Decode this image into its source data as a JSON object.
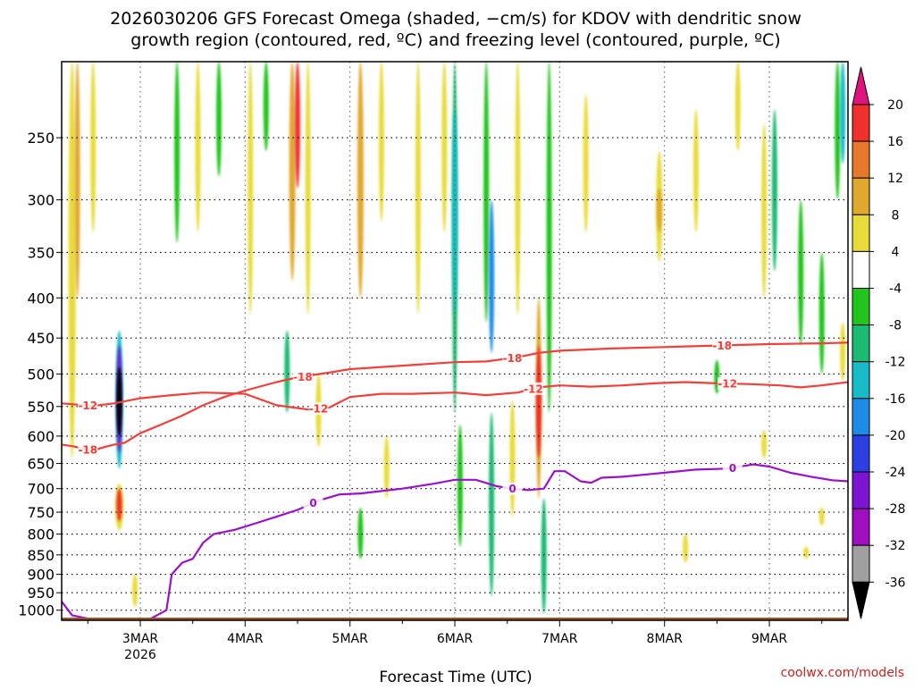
{
  "chart_data": {
    "type": "heatmap",
    "title": [
      "2026030206 GFS Forecast Omega (shaded, −cm/s) for KDOV with dendritic snow",
      "growth region (contoured, red, ºC) and freezing level (contoured, purple, ºC)"
    ],
    "xlabel": "Forecast Time (UTC)",
    "ylabel": "",
    "credit": "coolwx.com/models",
    "x_range_days": [
      2.25,
      9.75
    ],
    "x_ticks": [
      {
        "day": 3,
        "label": "3MAR",
        "sublabel": "2026"
      },
      {
        "day": 4,
        "label": "4MAR"
      },
      {
        "day": 5,
        "label": "5MAR"
      },
      {
        "day": 6,
        "label": "6MAR"
      },
      {
        "day": 7,
        "label": "7MAR"
      },
      {
        "day": 8,
        "label": "8MAR"
      },
      {
        "day": 9,
        "label": "9MAR"
      }
    ],
    "y_range_hpa": [
      1030,
      200
    ],
    "y_ticks": [
      250,
      300,
      350,
      400,
      450,
      500,
      550,
      600,
      650,
      700,
      750,
      800,
      850,
      900,
      950,
      1000
    ],
    "colorbar": {
      "labels": [
        "20",
        "16",
        "12",
        "8",
        "4",
        "-4",
        "-8",
        "-12",
        "-16",
        "-20",
        "-24",
        "-28",
        "-32",
        "-36"
      ],
      "bins": [
        {
          "range": "above 20",
          "color": "#e0147e"
        },
        {
          "range": "16 to 20",
          "color": "#f0302c"
        },
        {
          "range": "12 to 16",
          "color": "#e77a2a"
        },
        {
          "range": "8 to 12",
          "color": "#e0a92e"
        },
        {
          "range": "4 to 8",
          "color": "#e8dc3a"
        },
        {
          "range": "-4 to 4",
          "color": "#ffffff"
        },
        {
          "range": "-8 to -4",
          "color": "#22c41e"
        },
        {
          "range": "-12 to -8",
          "color": "#1cba72"
        },
        {
          "range": "-16 to -12",
          "color": "#18bcc8"
        },
        {
          "range": "-20 to -16",
          "color": "#1e8ce6"
        },
        {
          "range": "-24 to -20",
          "color": "#2c3fe0"
        },
        {
          "range": "-28 to -24",
          "color": "#7c14d2"
        },
        {
          "range": "-32 to -28",
          "color": "#a00ec0"
        },
        {
          "range": "-36 to -32",
          "color": "#a0a0a0"
        },
        {
          "range": "below -36",
          "color": "#000000"
        }
      ]
    },
    "contours": [
      {
        "name": "-18C isotherm",
        "label": "-18",
        "color": "#f0403a",
        "points": [
          [
            2.25,
            615
          ],
          [
            2.35,
            618
          ],
          [
            2.45,
            622
          ],
          [
            2.55,
            626
          ],
          [
            2.65,
            620
          ],
          [
            2.75,
            615
          ],
          [
            2.85,
            612
          ],
          [
            3.0,
            595
          ],
          [
            3.2,
            580
          ],
          [
            3.4,
            565
          ],
          [
            3.6,
            548
          ],
          [
            3.8,
            535
          ],
          [
            4.0,
            525
          ],
          [
            4.3,
            512
          ],
          [
            4.5,
            505
          ],
          [
            4.8,
            498
          ],
          [
            5.0,
            493
          ],
          [
            5.5,
            488
          ],
          [
            6.0,
            483
          ],
          [
            6.3,
            482
          ],
          [
            6.6,
            476
          ],
          [
            6.8,
            470
          ],
          [
            7.0,
            467
          ],
          [
            7.5,
            464
          ],
          [
            8.0,
            462
          ],
          [
            8.5,
            460
          ],
          [
            9.0,
            458
          ],
          [
            9.5,
            457
          ],
          [
            9.75,
            456
          ]
        ],
        "labels_at": [
          [
            2.5,
            1
          ],
          [
            4.55,
            1
          ],
          [
            6.55,
            1
          ],
          [
            8.55,
            1
          ]
        ]
      },
      {
        "name": "-12C isotherm",
        "label": "-12",
        "color": "#f0403a",
        "points": [
          [
            2.25,
            545
          ],
          [
            2.4,
            547
          ],
          [
            2.55,
            549
          ],
          [
            2.75,
            545
          ],
          [
            3.0,
            537
          ],
          [
            3.3,
            532
          ],
          [
            3.6,
            528
          ],
          [
            4.0,
            530
          ],
          [
            4.3,
            548
          ],
          [
            4.6,
            555
          ],
          [
            4.8,
            552
          ],
          [
            5.0,
            535
          ],
          [
            5.3,
            530
          ],
          [
            5.6,
            530
          ],
          [
            6.0,
            528
          ],
          [
            6.3,
            532
          ],
          [
            6.6,
            528
          ],
          [
            6.8,
            520
          ],
          [
            7.0,
            517
          ],
          [
            7.3,
            519
          ],
          [
            7.6,
            517
          ],
          [
            7.9,
            514
          ],
          [
            8.2,
            512
          ],
          [
            8.5,
            514
          ],
          [
            8.8,
            515
          ],
          [
            9.1,
            517
          ],
          [
            9.3,
            520
          ],
          [
            9.5,
            517
          ],
          [
            9.75,
            512
          ]
        ],
        "labels_at": [
          [
            2.5,
            1
          ],
          [
            4.7,
            1
          ],
          [
            6.75,
            1
          ],
          [
            8.6,
            1
          ]
        ]
      },
      {
        "name": "0C freezing level",
        "label": "0",
        "color": "#9a12c8",
        "points": [
          [
            2.25,
            975
          ],
          [
            2.35,
            1015
          ],
          [
            2.5,
            1025
          ],
          [
            2.7,
            1030
          ],
          [
            2.9,
            1030
          ],
          [
            3.1,
            1025
          ],
          [
            3.25,
            1000
          ],
          [
            3.3,
            900
          ],
          [
            3.4,
            870
          ],
          [
            3.5,
            860
          ],
          [
            3.6,
            820
          ],
          [
            3.7,
            800
          ],
          [
            3.9,
            790
          ],
          [
            4.1,
            775
          ],
          [
            4.3,
            760
          ],
          [
            4.5,
            745
          ],
          [
            4.7,
            725
          ],
          [
            4.9,
            712
          ],
          [
            5.1,
            710
          ],
          [
            5.3,
            705
          ],
          [
            5.5,
            700
          ],
          [
            5.8,
            690
          ],
          [
            6.0,
            682
          ],
          [
            6.2,
            682
          ],
          [
            6.4,
            695
          ],
          [
            6.55,
            700
          ],
          [
            6.7,
            703
          ],
          [
            6.85,
            700
          ],
          [
            6.95,
            665
          ],
          [
            7.05,
            665
          ],
          [
            7.2,
            685
          ],
          [
            7.3,
            688
          ],
          [
            7.4,
            678
          ],
          [
            7.6,
            676
          ],
          [
            7.8,
            672
          ],
          [
            8.0,
            668
          ],
          [
            8.3,
            662
          ],
          [
            8.6,
            660
          ],
          [
            8.85,
            652
          ],
          [
            9.0,
            656
          ],
          [
            9.2,
            668
          ],
          [
            9.4,
            676
          ],
          [
            9.6,
            683
          ],
          [
            9.75,
            685
          ]
        ],
        "labels_at": [
          [
            4.65,
            1
          ],
          [
            6.55,
            1
          ],
          [
            8.65,
            1
          ]
        ]
      }
    ],
    "series": [
      {
        "name": "omega_blobs",
        "note": "value = shaded omega bin (cm/s); t = day of March; p_top/p_bot = hPa extent",
        "values": [
          {
            "t": 2.35,
            "p_top": 200,
            "p_bot": 640,
            "w": 0.07,
            "v": 6
          },
          {
            "t": 2.4,
            "p_top": 200,
            "p_bot": 400,
            "w": 0.05,
            "v": 10
          },
          {
            "t": 2.55,
            "p_top": 200,
            "p_bot": 330,
            "w": 0.05,
            "v": 6
          },
          {
            "t": 2.8,
            "p_top": 440,
            "p_bot": 660,
            "w": 0.07,
            "v": -12
          },
          {
            "t": 2.8,
            "p_top": 460,
            "p_bot": 630,
            "w": 0.045,
            "v": -24
          },
          {
            "t": 2.8,
            "p_top": 490,
            "p_bot": 600,
            "w": 0.025,
            "v": -40
          },
          {
            "t": 2.8,
            "p_top": 690,
            "p_bot": 790,
            "w": 0.08,
            "v": 6
          },
          {
            "t": 2.8,
            "p_top": 700,
            "p_bot": 770,
            "w": 0.045,
            "v": 18
          },
          {
            "t": 2.95,
            "p_top": 900,
            "p_bot": 990,
            "w": 0.05,
            "v": 6
          },
          {
            "t": 3.35,
            "p_top": 200,
            "p_bot": 340,
            "w": 0.03,
            "v": -6
          },
          {
            "t": 3.55,
            "p_top": 200,
            "p_bot": 330,
            "w": 0.04,
            "v": 6
          },
          {
            "t": 3.75,
            "p_top": 200,
            "p_bot": 280,
            "w": 0.03,
            "v": -6
          },
          {
            "t": 4.05,
            "p_top": 200,
            "p_bot": 420,
            "w": 0.04,
            "v": 6
          },
          {
            "t": 4.2,
            "p_top": 200,
            "p_bot": 260,
            "w": 0.03,
            "v": -6
          },
          {
            "t": 4.45,
            "p_top": 200,
            "p_bot": 380,
            "w": 0.06,
            "v": 10
          },
          {
            "t": 4.5,
            "p_top": 200,
            "p_bot": 290,
            "w": 0.03,
            "v": 18
          },
          {
            "t": 4.4,
            "p_top": 440,
            "p_bot": 560,
            "w": 0.04,
            "v": -10
          },
          {
            "t": 4.6,
            "p_top": 200,
            "p_bot": 420,
            "w": 0.04,
            "v": 6
          },
          {
            "t": 4.7,
            "p_top": 500,
            "p_bot": 620,
            "w": 0.035,
            "v": 6
          },
          {
            "t": 5.1,
            "p_top": 200,
            "p_bot": 400,
            "w": 0.06,
            "v": 8
          },
          {
            "t": 5.3,
            "p_top": 200,
            "p_bot": 320,
            "w": 0.04,
            "v": 6
          },
          {
            "t": 5.1,
            "p_top": 740,
            "p_bot": 860,
            "w": 0.04,
            "v": -6
          },
          {
            "t": 5.35,
            "p_top": 600,
            "p_bot": 720,
            "w": 0.03,
            "v": 6
          },
          {
            "t": 5.65,
            "p_top": 200,
            "p_bot": 420,
            "w": 0.04,
            "v": 6
          },
          {
            "t": 5.9,
            "p_top": 200,
            "p_bot": 330,
            "w": 0.04,
            "v": 6
          },
          {
            "t": 6.0,
            "p_top": 200,
            "p_bot": 560,
            "w": 0.045,
            "v": -8
          },
          {
            "t": 6.0,
            "p_top": 230,
            "p_bot": 420,
            "w": 0.025,
            "v": -14
          },
          {
            "t": 6.05,
            "p_top": 580,
            "p_bot": 830,
            "w": 0.04,
            "v": -6
          },
          {
            "t": 6.3,
            "p_top": 200,
            "p_bot": 430,
            "w": 0.05,
            "v": -6
          },
          {
            "t": 6.35,
            "p_top": 300,
            "p_bot": 470,
            "w": 0.025,
            "v": -16
          },
          {
            "t": 6.35,
            "p_top": 560,
            "p_bot": 960,
            "w": 0.04,
            "v": -8
          },
          {
            "t": 6.55,
            "p_top": 540,
            "p_bot": 760,
            "w": 0.03,
            "v": 6
          },
          {
            "t": 6.6,
            "p_top": 200,
            "p_bot": 420,
            "w": 0.04,
            "v": 6
          },
          {
            "t": 6.8,
            "p_top": 400,
            "p_bot": 720,
            "w": 0.045,
            "v": 10
          },
          {
            "t": 6.8,
            "p_top": 460,
            "p_bot": 640,
            "w": 0.025,
            "v": 18
          },
          {
            "t": 6.9,
            "p_top": 200,
            "p_bot": 560,
            "w": 0.03,
            "v": -6
          },
          {
            "t": 6.85,
            "p_top": 720,
            "p_bot": 1010,
            "w": 0.03,
            "v": -10
          },
          {
            "t": 7.25,
            "p_top": 220,
            "p_bot": 330,
            "w": 0.04,
            "v": 6
          },
          {
            "t": 7.95,
            "p_top": 260,
            "p_bot": 360,
            "w": 0.06,
            "v": 6
          },
          {
            "t": 7.95,
            "p_top": 290,
            "p_bot": 330,
            "w": 0.02,
            "v": 10
          },
          {
            "t": 8.3,
            "p_top": 230,
            "p_bot": 330,
            "w": 0.05,
            "v": 6
          },
          {
            "t": 8.5,
            "p_top": 480,
            "p_bot": 530,
            "w": 0.02,
            "v": -6
          },
          {
            "t": 8.7,
            "p_top": 200,
            "p_bot": 260,
            "w": 0.04,
            "v": 6
          },
          {
            "t": 8.95,
            "p_top": 240,
            "p_bot": 400,
            "w": 0.05,
            "v": 6
          },
          {
            "t": 9.05,
            "p_top": 230,
            "p_bot": 370,
            "w": 0.025,
            "v": -10
          },
          {
            "t": 9.3,
            "p_top": 300,
            "p_bot": 460,
            "w": 0.05,
            "v": -6
          },
          {
            "t": 9.5,
            "p_top": 350,
            "p_bot": 500,
            "w": 0.04,
            "v": -6
          },
          {
            "t": 9.65,
            "p_top": 200,
            "p_bot": 300,
            "w": 0.04,
            "v": -6
          },
          {
            "t": 9.7,
            "p_top": 200,
            "p_bot": 270,
            "w": 0.02,
            "v": -12
          },
          {
            "t": 9.7,
            "p_top": 430,
            "p_bot": 510,
            "w": 0.02,
            "v": 6
          },
          {
            "t": 8.2,
            "p_top": 800,
            "p_bot": 870,
            "w": 0.02,
            "v": 6
          },
          {
            "t": 9.35,
            "p_top": 830,
            "p_bot": 860,
            "w": 0.02,
            "v": 6
          },
          {
            "t": 9.5,
            "p_top": 740,
            "p_bot": 780,
            "w": 0.02,
            "v": 6
          },
          {
            "t": 8.95,
            "p_top": 590,
            "p_bot": 640,
            "w": 0.02,
            "v": 6
          }
        ]
      }
    ],
    "terrain_color": "#a0522d"
  }
}
